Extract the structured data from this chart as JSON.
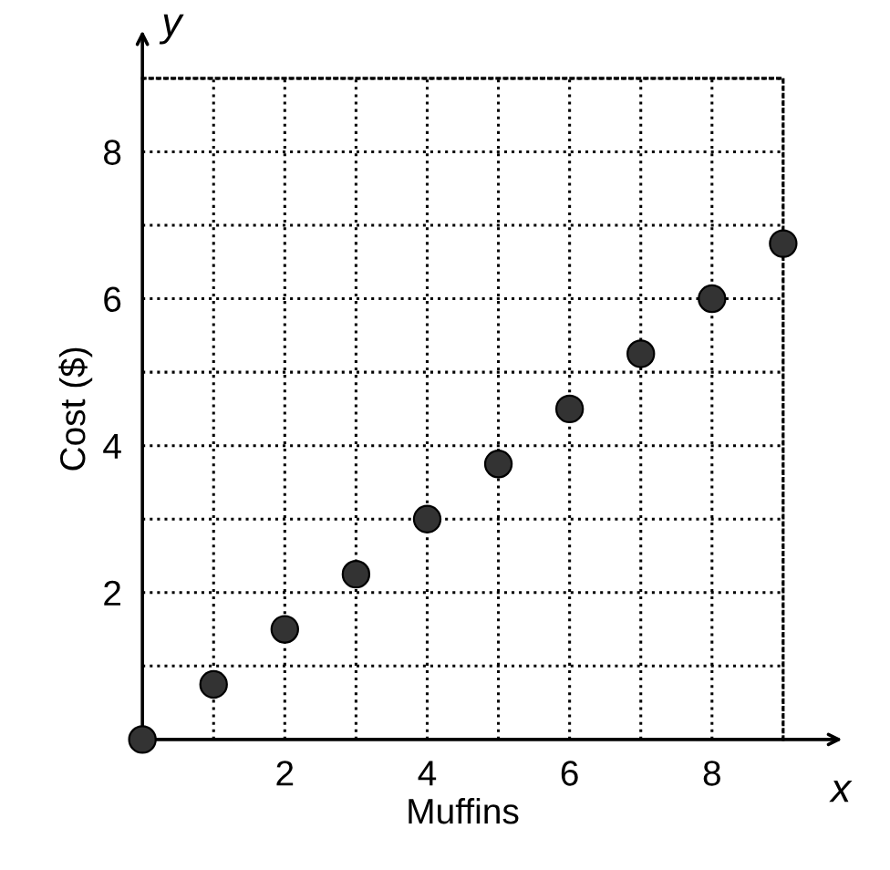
{
  "chart_data": {
    "type": "scatter",
    "xlabel": "Muffins",
    "ylabel": "Cost ($)",
    "annotations": [
      "x",
      "y"
    ],
    "x": [
      0,
      1,
      2,
      3,
      4,
      5,
      6,
      7,
      8,
      9
    ],
    "series": [
      {
        "color": "#333333",
        "values": [
          0,
          0.75,
          1.5,
          2.25,
          3,
          3.75,
          4.5,
          5.25,
          6,
          6.75
        ]
      }
    ],
    "xlim": [
      0,
      9
    ],
    "ylim": [
      0,
      9
    ],
    "xticks": [
      {
        "value": 1,
        "label": null
      },
      2,
      {
        "value": 3,
        "label": null
      },
      4,
      {
        "value": 5,
        "label": null
      },
      6,
      {
        "value": 7,
        "label": null
      },
      8,
      {
        "value": 9,
        "label": null
      }
    ],
    "yticks": [
      {
        "value": 1,
        "label": null
      },
      2,
      {
        "value": 3,
        "label": null
      },
      4,
      {
        "value": 5,
        "label": null
      },
      6,
      {
        "value": 7,
        "label": null
      },
      8,
      {
        "value": 9,
        "label": null
      }
    ],
    "grid": true,
    "marker": "circle"
  }
}
